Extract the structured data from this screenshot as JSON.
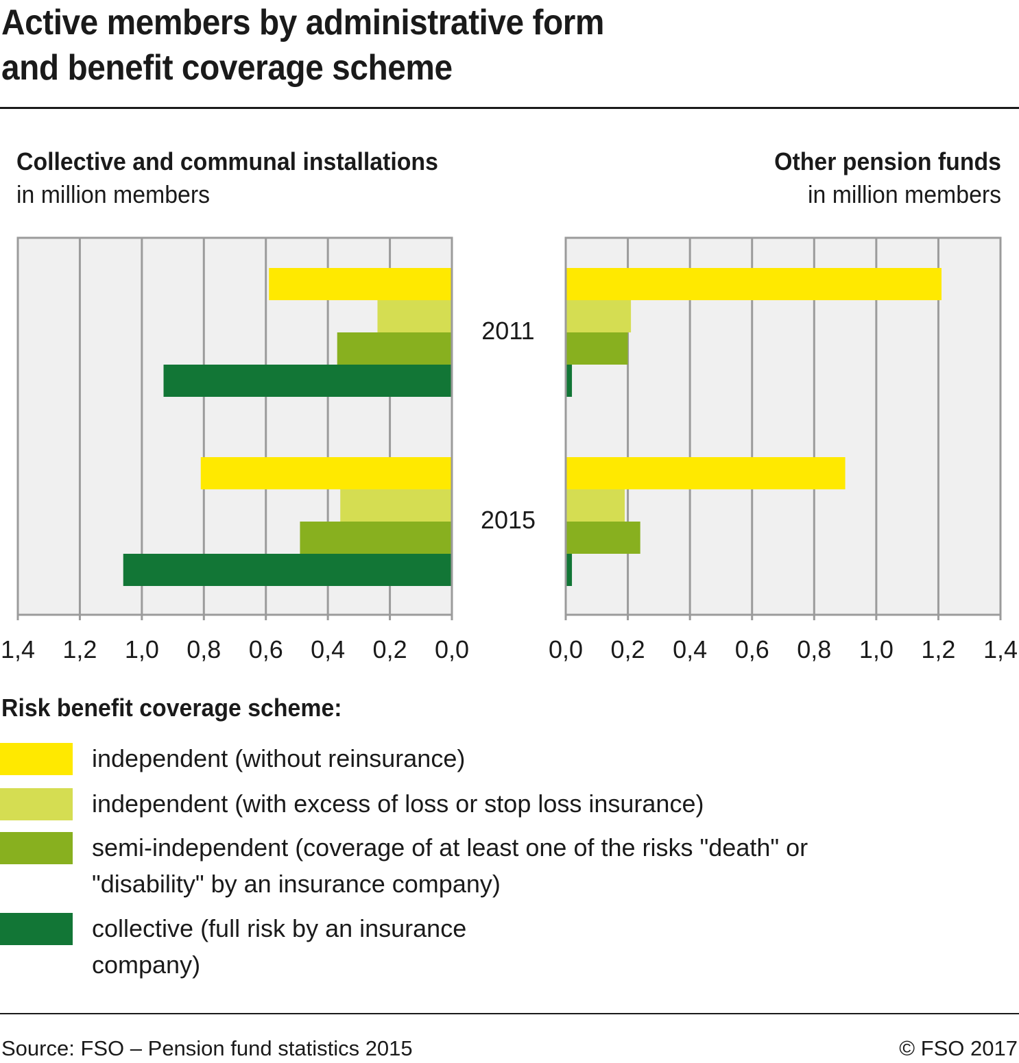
{
  "title_line1": "Active members by administrative form",
  "title_line2": "and benefit coverage scheme",
  "panels": [
    {
      "title": "Collective and communal installations",
      "subtitle": "in million members"
    },
    {
      "title": "Other pension funds",
      "subtitle": "in million members"
    }
  ],
  "legend_title": "Risk benefit coverage scheme:",
  "legend": [
    {
      "label": "independent (without reinsurance)",
      "color": "#FFE900"
    },
    {
      "label": "independent (with excess of loss or stop loss insurance)",
      "color": "#D5DD52"
    },
    {
      "label": "semi-independent (coverage of at least one of the risks \"death\" or \"disability\" by an insurance company)",
      "color": "#88B01F"
    },
    {
      "label": "collective (full risk by an insurance company)",
      "color": "#127636"
    }
  ],
  "source": "Source: FSO – Pension fund statistics 2015",
  "copyright": "© FSO 2017",
  "chart_data": [
    {
      "type": "bar",
      "orientation": "horizontal",
      "direction": "right-to-left",
      "title": "Collective and communal installations",
      "xlabel": "in million members",
      "categories": [
        "2011",
        "2015"
      ],
      "xlim": [
        0,
        1.4
      ],
      "ticks": [
        "0,0",
        "0,2",
        "0,4",
        "0,6",
        "0,8",
        "1,0",
        "1,2",
        "1,4"
      ],
      "grid": true,
      "series": [
        {
          "name": "independent (without reinsurance)",
          "values": [
            0.59,
            0.81
          ]
        },
        {
          "name": "independent (with excess of loss or stop loss insurance)",
          "values": [
            0.24,
            0.36
          ]
        },
        {
          "name": "semi-independent (coverage of at least one of the risks \"death\" or \"disability\" by an insurance company)",
          "values": [
            0.37,
            0.49
          ]
        },
        {
          "name": "collective (full risk by an insurance company)",
          "values": [
            0.93,
            1.06
          ]
        }
      ]
    },
    {
      "type": "bar",
      "orientation": "horizontal",
      "direction": "left-to-right",
      "title": "Other pension funds",
      "xlabel": "in million members",
      "categories": [
        "2011",
        "2015"
      ],
      "xlim": [
        0,
        1.4
      ],
      "ticks": [
        "0,0",
        "0,2",
        "0,4",
        "0,6",
        "0,8",
        "1,0",
        "1,2",
        "1,4"
      ],
      "grid": true,
      "series": [
        {
          "name": "independent (without reinsurance)",
          "values": [
            1.21,
            0.9
          ]
        },
        {
          "name": "independent (with excess of loss or stop loss insurance)",
          "values": [
            0.21,
            0.19
          ]
        },
        {
          "name": "semi-independent (coverage of at least one of the risks \"death\" or \"disability\" by an insurance company)",
          "values": [
            0.2,
            0.24
          ]
        },
        {
          "name": "collective (full risk by an insurance company)",
          "values": [
            0.02,
            0.02
          ]
        }
      ]
    }
  ]
}
